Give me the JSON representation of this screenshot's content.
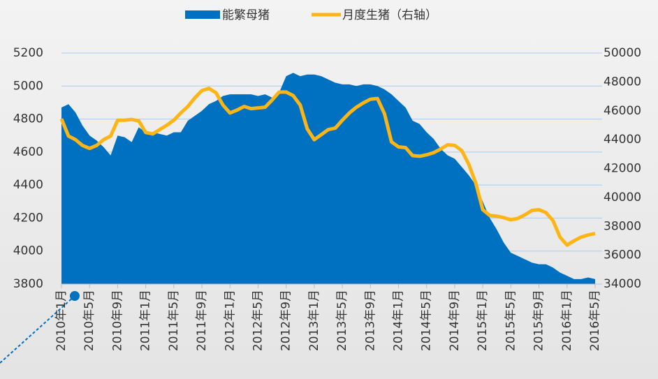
{
  "chart_data": {
    "type": "area-line",
    "categories": [
      "2010年1月",
      null,
      null,
      null,
      "2010年5月",
      null,
      null,
      null,
      "2010年9月",
      null,
      null,
      null,
      "2011年1月",
      null,
      null,
      null,
      "2011年5月",
      null,
      null,
      null,
      "2011年9月",
      null,
      null,
      null,
      "2012年1月",
      null,
      null,
      null,
      "2012年5月",
      null,
      null,
      null,
      "2012年9月",
      null,
      null,
      null,
      "2013年1月",
      null,
      null,
      null,
      "2013年5月",
      null,
      null,
      null,
      "2013年9月",
      null,
      null,
      null,
      "2014年1月",
      null,
      null,
      null,
      "2014年5月",
      null,
      null,
      null,
      "2014年9月",
      null,
      null,
      null,
      "2015年1月",
      null,
      null,
      null,
      "2015年5月",
      null,
      null,
      null,
      "2015年9月",
      null,
      null,
      null,
      "2016年1月",
      null,
      null,
      null,
      "2016年5月"
    ],
    "series": [
      {
        "name": "能繁母猪",
        "type": "area",
        "color": "#0070c0",
        "axis": "y",
        "values": [
          4870,
          4890,
          4840,
          4760,
          4700,
          4670,
          4630,
          4580,
          4700,
          4690,
          4660,
          4750,
          4720,
          4720,
          4710,
          4700,
          4720,
          4720,
          4790,
          4820,
          4850,
          4890,
          4910,
          4940,
          4950,
          4950,
          4950,
          4950,
          4940,
          4950,
          4930,
          4960,
          5060,
          5080,
          5060,
          5070,
          5070,
          5060,
          5040,
          5020,
          5010,
          5010,
          5000,
          5010,
          5010,
          5000,
          4980,
          4950,
          4910,
          4870,
          4790,
          4770,
          4720,
          4680,
          4620,
          4580,
          4560,
          4510,
          4460,
          4400,
          4300,
          4200,
          4130,
          4050,
          3990,
          3970,
          3950,
          3930,
          3920,
          3920,
          3900,
          3870,
          3850,
          3830,
          3830,
          3840,
          3830
        ]
      },
      {
        "name": "月度生猪（右轴）",
        "type": "line",
        "color": "#fdb515",
        "axis": "y2",
        "values": [
          45450,
          44250,
          44000,
          43600,
          43400,
          43600,
          44000,
          44250,
          45350,
          45350,
          45400,
          45300,
          44500,
          44400,
          44700,
          45000,
          45350,
          45850,
          46300,
          46900,
          47400,
          47550,
          47250,
          46400,
          45850,
          46050,
          46300,
          46150,
          46200,
          46250,
          46750,
          47300,
          47300,
          47050,
          46400,
          44750,
          44000,
          44350,
          44700,
          44800,
          45350,
          45850,
          46250,
          46550,
          46800,
          46850,
          45800,
          43850,
          43500,
          43450,
          42900,
          42850,
          42950,
          43100,
          43350,
          43650,
          43600,
          43250,
          42300,
          41000,
          39150,
          38750,
          38700,
          38600,
          38450,
          38550,
          38800,
          39100,
          39150,
          38950,
          38400,
          37250,
          36700,
          37000,
          37250,
          37400,
          37500
        ]
      }
    ],
    "ylim": [
      3800,
      5200
    ],
    "yticks": [
      3800,
      4000,
      4200,
      4400,
      4600,
      4800,
      5000,
      5200
    ],
    "y2lim": [
      34000,
      50000
    ],
    "y2ticks": [
      34000,
      36000,
      38000,
      40000,
      42000,
      44000,
      46000,
      48000,
      50000
    ],
    "grid": true,
    "legend": "top"
  }
}
